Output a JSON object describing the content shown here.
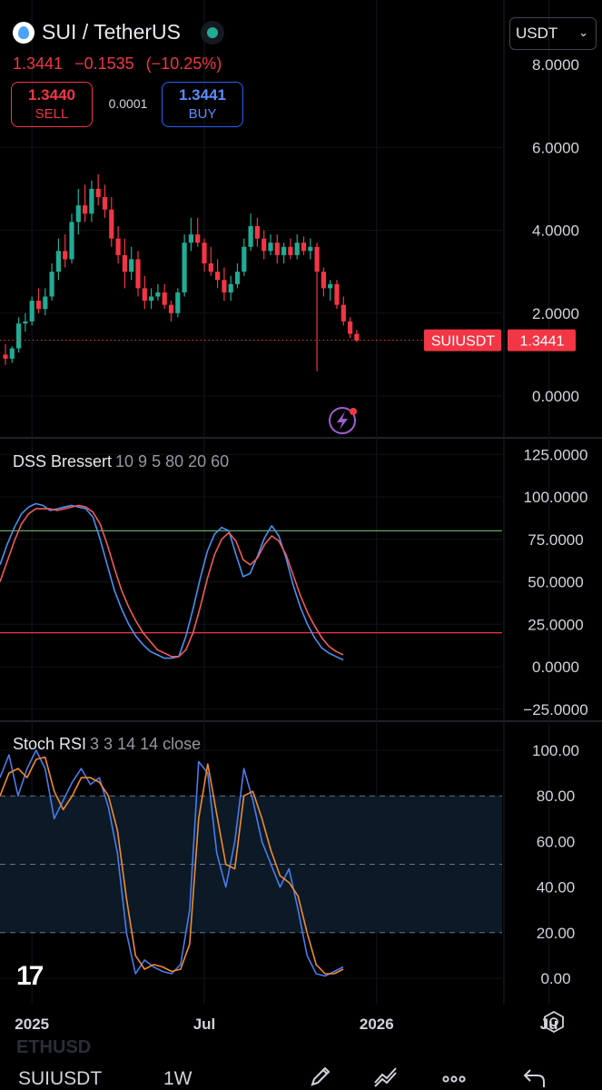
{
  "header": {
    "symbol": "SUI / TetherUS",
    "price": "1.3441",
    "change": "−0.1535",
    "change_pct": "(−10.25%)",
    "sell_price": "1.3440",
    "sell_label": "SELL",
    "spread": "0.0001",
    "buy_price": "1.3441",
    "buy_label": "BUY",
    "currency": "USDT"
  },
  "footer": {
    "symbol": "SUIUSDT",
    "interval": "1W",
    "ghost_symbol": "ETHUSD"
  },
  "colors": {
    "up": "#22ab94",
    "down": "#f23645",
    "dss_k": "#4a90f0",
    "dss_d": "#f05a5a",
    "stoch_k": "#4b7bec",
    "stoch_d": "#f08a30",
    "upper_level": "#5fa86a",
    "lower_level": "#f23645"
  },
  "chart_data": [
    {
      "type": "candlestick",
      "x_axis": {
        "labels": [
          "2025",
          "Jul",
          "2026",
          "Ju"
        ],
        "week_positions": [
          4,
          30,
          56,
          82
        ]
      },
      "y_ticks": [
        "8.0000",
        "6.0000",
        "4.0000",
        "2.0000",
        "0.0000"
      ],
      "y_tick_values": [
        8,
        6,
        4,
        2,
        0
      ],
      "ylim": [
        -1.0,
        8.45
      ],
      "last_price": 1.3441,
      "last_price_label": "SUIUSDT",
      "last_price_value": "1.3441",
      "candles": [
        [
          1.0,
          1.25,
          0.75,
          0.9
        ],
        [
          0.9,
          1.2,
          0.8,
          1.15
        ],
        [
          1.15,
          1.9,
          1.05,
          1.75
        ],
        [
          1.75,
          2.0,
          1.55,
          1.8
        ],
        [
          1.8,
          2.4,
          1.7,
          2.3
        ],
        [
          2.3,
          2.6,
          2.0,
          2.1
        ],
        [
          2.1,
          2.6,
          1.95,
          2.4
        ],
        [
          2.4,
          3.2,
          2.3,
          3.0
        ],
        [
          3.0,
          3.8,
          2.8,
          3.5
        ],
        [
          3.5,
          3.9,
          3.1,
          3.3
        ],
        [
          3.3,
          4.4,
          3.2,
          4.2
        ],
        [
          4.2,
          5.0,
          3.9,
          4.6
        ],
        [
          4.6,
          5.1,
          4.2,
          4.4
        ],
        [
          4.4,
          5.2,
          4.2,
          5.0
        ],
        [
          5.0,
          5.35,
          4.6,
          4.8
        ],
        [
          4.8,
          5.1,
          4.3,
          4.5
        ],
        [
          4.5,
          4.8,
          3.6,
          3.8
        ],
        [
          3.8,
          4.1,
          3.2,
          3.4
        ],
        [
          3.4,
          3.8,
          2.6,
          3.0
        ],
        [
          3.0,
          3.6,
          2.8,
          3.3
        ],
        [
          3.3,
          3.5,
          2.4,
          2.6
        ],
        [
          2.6,
          2.9,
          2.1,
          2.3
        ],
        [
          2.3,
          2.6,
          2.1,
          2.4
        ],
        [
          2.4,
          2.7,
          2.3,
          2.5
        ],
        [
          2.5,
          2.7,
          2.1,
          2.2
        ],
        [
          2.2,
          2.3,
          1.8,
          2.0
        ],
        [
          2.0,
          2.6,
          1.9,
          2.5
        ],
        [
          2.5,
          3.9,
          2.4,
          3.7
        ],
        [
          3.7,
          4.3,
          3.5,
          3.9
        ],
        [
          3.9,
          4.3,
          3.6,
          3.7
        ],
        [
          3.7,
          3.8,
          3.0,
          3.2
        ],
        [
          3.2,
          3.6,
          2.9,
          3.0
        ],
        [
          3.0,
          3.3,
          2.6,
          2.8
        ],
        [
          2.8,
          3.1,
          2.3,
          2.5
        ],
        [
          2.5,
          2.9,
          2.3,
          2.7
        ],
        [
          2.7,
          3.2,
          2.6,
          3.0
        ],
        [
          3.0,
          3.8,
          2.9,
          3.6
        ],
        [
          3.6,
          4.4,
          3.5,
          4.1
        ],
        [
          4.1,
          4.3,
          3.6,
          3.8
        ],
        [
          3.8,
          4.0,
          3.3,
          3.5
        ],
        [
          3.5,
          3.9,
          3.4,
          3.7
        ],
        [
          3.7,
          3.9,
          3.2,
          3.4
        ],
        [
          3.4,
          3.7,
          3.2,
          3.6
        ],
        [
          3.6,
          3.8,
          3.3,
          3.4
        ],
        [
          3.4,
          3.9,
          3.3,
          3.7
        ],
        [
          3.7,
          3.85,
          3.4,
          3.5
        ],
        [
          3.5,
          3.8,
          3.3,
          3.6
        ],
        [
          3.6,
          3.7,
          0.6,
          3.0
        ],
        [
          3.0,
          3.1,
          2.4,
          2.6
        ],
        [
          2.6,
          2.8,
          2.3,
          2.7
        ],
        [
          2.7,
          2.8,
          2.1,
          2.2
        ],
        [
          2.2,
          2.4,
          1.7,
          1.8
        ],
        [
          1.8,
          1.9,
          1.4,
          1.5
        ],
        [
          1.5,
          1.6,
          1.3,
          1.34
        ]
      ]
    },
    {
      "type": "line",
      "title": "DSS Bressert",
      "params": "10 9 5 80 20 60",
      "y_ticks": [
        "125.0000",
        "100.0000",
        "75.0000",
        "50.0000",
        "25.0000",
        "0.0000",
        "−25.0000"
      ],
      "y_tick_values": [
        125,
        100,
        75,
        50,
        25,
        0,
        -25
      ],
      "ylim": [
        -25,
        125
      ],
      "levels": [
        80,
        20
      ],
      "series": [
        {
          "key": "k",
          "values": [
            60,
            72,
            82,
            90,
            94,
            96,
            95,
            92,
            93,
            94,
            95,
            94,
            93,
            88,
            75,
            60,
            45,
            34,
            25,
            18,
            13,
            9,
            7,
            5,
            5,
            6,
            18,
            34,
            52,
            68,
            78,
            82,
            80,
            66,
            53,
            55,
            65,
            76,
            83,
            77,
            64,
            48,
            35,
            25,
            17,
            11,
            8,
            6,
            4
          ]
        },
        {
          "key": "d",
          "values": [
            50,
            62,
            74,
            84,
            90,
            93,
            93,
            93,
            92,
            93,
            94,
            95,
            94,
            91,
            84,
            72,
            58,
            45,
            35,
            27,
            20,
            15,
            10,
            8,
            6,
            6,
            10,
            20,
            35,
            52,
            66,
            75,
            79,
            74,
            63,
            60,
            64,
            72,
            77,
            74,
            66,
            54,
            42,
            32,
            24,
            17,
            12,
            9,
            7
          ]
        }
      ]
    },
    {
      "type": "line",
      "title": "Stoch RSI",
      "params": "3 3 14 14 close",
      "y_ticks": [
        "100.00",
        "80.00",
        "60.00",
        "40.00",
        "20.00",
        "0.00"
      ],
      "y_tick_values": [
        100,
        80,
        60,
        40,
        20,
        0
      ],
      "ylim": [
        -7,
        107
      ],
      "levels": [
        80,
        50,
        20
      ],
      "series": [
        {
          "key": "k",
          "values": [
            88,
            98,
            80,
            92,
            100,
            92,
            70,
            78,
            86,
            92,
            85,
            88,
            75,
            55,
            20,
            2,
            8,
            5,
            3,
            2,
            6,
            30,
            95,
            90,
            55,
            40,
            60,
            92,
            78,
            60,
            50,
            40,
            48,
            30,
            10,
            2,
            1,
            3,
            5
          ]
        },
        {
          "key": "d",
          "values": [
            80,
            90,
            92,
            88,
            96,
            97,
            82,
            74,
            80,
            88,
            88,
            86,
            80,
            65,
            35,
            10,
            4,
            6,
            5,
            3,
            4,
            15,
            70,
            94,
            72,
            50,
            48,
            80,
            82,
            70,
            56,
            45,
            42,
            36,
            20,
            6,
            2,
            2,
            4
          ]
        }
      ]
    }
  ]
}
